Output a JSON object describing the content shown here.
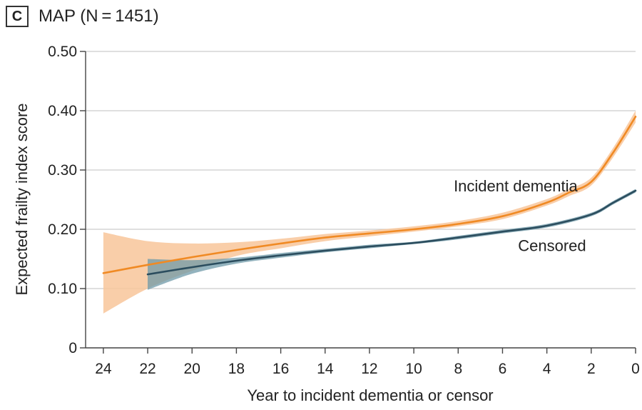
{
  "panel": {
    "letter": "C",
    "title": "MAP (N = 1451)"
  },
  "chart_data": {
    "type": "line",
    "title": "MAP (N = 1451)",
    "xlabel": "Year to incident dementia or censor",
    "ylabel": "Expected frailty index score",
    "xlim": [
      24.8,
      0
    ],
    "ylim": [
      0,
      0.5
    ],
    "x_ticks": [
      24,
      22,
      20,
      18,
      16,
      14,
      12,
      10,
      8,
      6,
      4,
      2,
      0
    ],
    "x_tick_labels": [
      "24",
      "22",
      "20",
      "18",
      "16",
      "14",
      "12",
      "10",
      "8",
      "6",
      "4",
      "2",
      "0"
    ],
    "y_ticks": [
      0,
      0.1,
      0.2,
      0.3,
      0.4,
      0.5
    ],
    "y_tick_labels": [
      "0",
      "0.10",
      "0.20",
      "0.30",
      "0.40",
      "0.50"
    ],
    "grid": "horizontal",
    "series": [
      {
        "name": "Incident dementia",
        "color": "#f08a24",
        "band_color": "#f8c69a",
        "x": [
          24,
          22,
          20,
          18,
          16,
          14,
          12,
          10,
          8,
          6,
          4,
          3,
          2,
          1,
          0
        ],
        "y": [
          0.126,
          0.14,
          0.153,
          0.165,
          0.176,
          0.186,
          0.193,
          0.2,
          0.209,
          0.222,
          0.245,
          0.262,
          0.28,
          0.33,
          0.39
        ],
        "lower": [
          0.058,
          0.1,
          0.13,
          0.155,
          0.168,
          0.18,
          0.188,
          0.196,
          0.205,
          0.217,
          0.24,
          0.256,
          0.274,
          0.322,
          0.38
        ],
        "upper": [
          0.195,
          0.18,
          0.176,
          0.178,
          0.184,
          0.192,
          0.198,
          0.205,
          0.214,
          0.228,
          0.251,
          0.268,
          0.287,
          0.338,
          0.4
        ]
      },
      {
        "name": "Censored",
        "color": "#2b4d5e",
        "band_color": "#6f9aa8",
        "x": [
          22,
          20,
          18,
          16,
          14,
          12,
          10,
          8,
          6,
          4,
          2,
          1,
          0
        ],
        "y": [
          0.124,
          0.136,
          0.147,
          0.156,
          0.164,
          0.171,
          0.177,
          0.186,
          0.196,
          0.206,
          0.225,
          0.245,
          0.265
        ],
        "lower": [
          0.098,
          0.125,
          0.142,
          0.152,
          0.161,
          0.168,
          0.175,
          0.183,
          0.193,
          0.203,
          0.222,
          0.242,
          0.262
        ],
        "upper": [
          0.15,
          0.148,
          0.152,
          0.16,
          0.167,
          0.174,
          0.179,
          0.189,
          0.199,
          0.209,
          0.228,
          0.248,
          0.268
        ]
      }
    ],
    "annotations": [
      {
        "text": "Incident dementia",
        "x": 8.2,
        "y": 0.264
      },
      {
        "text": "Censored",
        "x": 5.3,
        "y": 0.163
      }
    ]
  }
}
